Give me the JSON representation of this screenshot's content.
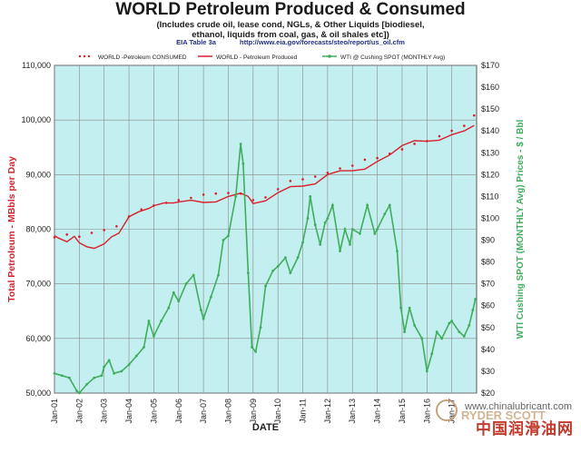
{
  "title": "WORLD Petroleum Produced & Consumed",
  "subtitle_lines": [
    "(Includes crude oil, lease  cond, NGLs, & Other Liquids [biodiesel,",
    "ethanol, liquids from coal, gas, & oil shales etc])"
  ],
  "source": {
    "table": "EIA Table 3a",
    "url": "http://www.eia.gov/forecasts/steo/report/us_oil.cfm"
  },
  "watermark": {
    "site": "www.chinalubricant.com",
    "cn": "中国润滑油网",
    "logo": "RYDER SCOTT"
  },
  "colors": {
    "consumed": "#d8212b",
    "produced": "#d8212b",
    "wti": "#3fae5c",
    "plot_bg": "#c3eff1",
    "grid": "#888888"
  },
  "chart_data": {
    "type": "line",
    "xlabel": "DATE",
    "ylabel_left": "Total Petroleum - MBbls per Day",
    "ylabel_right": "WTI Cushing SPOT (MONTHLY Avg) Prices - $ / Bbl",
    "x_ticks": [
      "Jan-01",
      "Jan-02",
      "Jan-03",
      "Jan-04",
      "Jan-05",
      "Jan-06",
      "Jan-07",
      "Jan-08",
      "Jan-09",
      "Jan-10",
      "Jan-11",
      "Jan-12",
      "Jan-13",
      "Jan-14",
      "Jan-15",
      "Jan-16",
      "Jan-17"
    ],
    "y_left_ticks": [
      "50,000",
      "60,000",
      "70,000",
      "80,000",
      "90,000",
      "100,000",
      "110,000"
    ],
    "y_left_range": [
      50000,
      110000
    ],
    "y_right_ticks": [
      "$20",
      "$30",
      "$40",
      "$50",
      "$60",
      "$70",
      "$80",
      "$90",
      "$100",
      "$110",
      "$120",
      "$130",
      "$140",
      "$150",
      "$160",
      "$170"
    ],
    "y_right_range": [
      20,
      170
    ],
    "x_range": [
      2001.0,
      2018.0
    ],
    "grid": true,
    "legend": "top",
    "series": [
      {
        "name": "WORLD -Petroleum CONSUMED",
        "axis": "left",
        "style": "dots",
        "points": [
          [
            2001.0,
            78200
          ],
          [
            2001.5,
            78700
          ],
          [
            2002.0,
            78300
          ],
          [
            2002.5,
            79000
          ],
          [
            2003.0,
            79500
          ],
          [
            2003.5,
            80200
          ],
          [
            2004.0,
            82000
          ],
          [
            2004.5,
            83300
          ],
          [
            2005.0,
            84000
          ],
          [
            2005.5,
            84500
          ],
          [
            2006.0,
            85000
          ],
          [
            2006.5,
            85400
          ],
          [
            2007.0,
            86000
          ],
          [
            2007.5,
            86200
          ],
          [
            2008.0,
            86300
          ],
          [
            2008.5,
            86200
          ],
          [
            2009.0,
            85000
          ],
          [
            2009.5,
            85500
          ],
          [
            2010.0,
            87000
          ],
          [
            2010.5,
            88500
          ],
          [
            2011.0,
            88800
          ],
          [
            2011.5,
            89300
          ],
          [
            2012.0,
            90000
          ],
          [
            2012.5,
            90800
          ],
          [
            2013.0,
            91300
          ],
          [
            2013.5,
            92400
          ],
          [
            2014.0,
            92700
          ],
          [
            2014.5,
            93500
          ],
          [
            2015.0,
            94300
          ],
          [
            2015.5,
            95300
          ],
          [
            2016.0,
            95800
          ],
          [
            2016.5,
            96700
          ],
          [
            2017.0,
            97700
          ],
          [
            2017.5,
            98600
          ],
          [
            2017.9,
            100500
          ]
        ]
      },
      {
        "name": "WORLD - Petroleum Produced",
        "axis": "left",
        "style": "line",
        "points": [
          [
            2001.0,
            78800
          ],
          [
            2001.2,
            78300
          ],
          [
            2001.5,
            77700
          ],
          [
            2001.8,
            78700
          ],
          [
            2002.0,
            77500
          ],
          [
            2002.3,
            76800
          ],
          [
            2002.6,
            76500
          ],
          [
            2003.0,
            77300
          ],
          [
            2003.3,
            78600
          ],
          [
            2003.6,
            79300
          ],
          [
            2004.0,
            82300
          ],
          [
            2004.4,
            83200
          ],
          [
            2004.8,
            83800
          ],
          [
            2005.0,
            84300
          ],
          [
            2005.4,
            84800
          ],
          [
            2005.8,
            84800
          ],
          [
            2006.0,
            85000
          ],
          [
            2006.5,
            85300
          ],
          [
            2007.0,
            84900
          ],
          [
            2007.5,
            85000
          ],
          [
            2008.0,
            86000
          ],
          [
            2008.5,
            86600
          ],
          [
            2008.8,
            86000
          ],
          [
            2009.0,
            84700
          ],
          [
            2009.5,
            85200
          ],
          [
            2010.0,
            86700
          ],
          [
            2010.5,
            87800
          ],
          [
            2011.0,
            87900
          ],
          [
            2011.5,
            88300
          ],
          [
            2012.0,
            90000
          ],
          [
            2012.5,
            90700
          ],
          [
            2013.0,
            90700
          ],
          [
            2013.5,
            91000
          ],
          [
            2014.0,
            92400
          ],
          [
            2014.5,
            93600
          ],
          [
            2015.0,
            95300
          ],
          [
            2015.5,
            96200
          ],
          [
            2016.0,
            96100
          ],
          [
            2016.5,
            96300
          ],
          [
            2017.0,
            97300
          ],
          [
            2017.5,
            98000
          ],
          [
            2017.9,
            99000
          ]
        ]
      },
      {
        "name": "WTI @ Cushing SPOT (MONTHLY Avg)",
        "axis": "right",
        "style": "line-markers",
        "points": [
          [
            2001.0,
            29
          ],
          [
            2001.3,
            28
          ],
          [
            2001.6,
            27
          ],
          [
            2001.9,
            21
          ],
          [
            2002.0,
            20
          ],
          [
            2002.3,
            24
          ],
          [
            2002.6,
            27
          ],
          [
            2002.9,
            28
          ],
          [
            2003.0,
            32
          ],
          [
            2003.2,
            35
          ],
          [
            2003.4,
            29
          ],
          [
            2003.7,
            30
          ],
          [
            2004.0,
            33
          ],
          [
            2004.3,
            37
          ],
          [
            2004.6,
            41
          ],
          [
            2004.8,
            53
          ],
          [
            2005.0,
            46
          ],
          [
            2005.3,
            53
          ],
          [
            2005.6,
            59
          ],
          [
            2005.8,
            66
          ],
          [
            2006.0,
            62
          ],
          [
            2006.3,
            70
          ],
          [
            2006.6,
            74
          ],
          [
            2006.9,
            58
          ],
          [
            2007.0,
            54
          ],
          [
            2007.3,
            64
          ],
          [
            2007.6,
            74
          ],
          [
            2007.8,
            90
          ],
          [
            2008.0,
            92
          ],
          [
            2008.3,
            110
          ],
          [
            2008.5,
            134
          ],
          [
            2008.6,
            125
          ],
          [
            2008.8,
            75
          ],
          [
            2008.95,
            41
          ],
          [
            2009.1,
            39
          ],
          [
            2009.3,
            50
          ],
          [
            2009.5,
            69
          ],
          [
            2009.8,
            76
          ],
          [
            2010.0,
            78
          ],
          [
            2010.3,
            82
          ],
          [
            2010.5,
            75
          ],
          [
            2010.8,
            82
          ],
          [
            2011.0,
            89
          ],
          [
            2011.2,
            100
          ],
          [
            2011.3,
            110
          ],
          [
            2011.5,
            97
          ],
          [
            2011.7,
            88
          ],
          [
            2011.9,
            98
          ],
          [
            2012.0,
            100
          ],
          [
            2012.2,
            106
          ],
          [
            2012.5,
            85
          ],
          [
            2012.7,
            95
          ],
          [
            2012.9,
            88
          ],
          [
            2013.0,
            95
          ],
          [
            2013.3,
            93
          ],
          [
            2013.6,
            106
          ],
          [
            2013.9,
            93
          ],
          [
            2014.0,
            95
          ],
          [
            2014.3,
            102
          ],
          [
            2014.5,
            106
          ],
          [
            2014.8,
            85
          ],
          [
            2014.95,
            59
          ],
          [
            2015.1,
            48
          ],
          [
            2015.3,
            59
          ],
          [
            2015.5,
            51
          ],
          [
            2015.8,
            45
          ],
          [
            2016.0,
            30
          ],
          [
            2016.2,
            38
          ],
          [
            2016.4,
            48
          ],
          [
            2016.6,
            45
          ],
          [
            2016.9,
            52
          ],
          [
            2017.0,
            53
          ],
          [
            2017.3,
            48
          ],
          [
            2017.5,
            46
          ],
          [
            2017.7,
            51
          ],
          [
            2017.85,
            58
          ],
          [
            2017.95,
            63
          ]
        ]
      }
    ]
  }
}
